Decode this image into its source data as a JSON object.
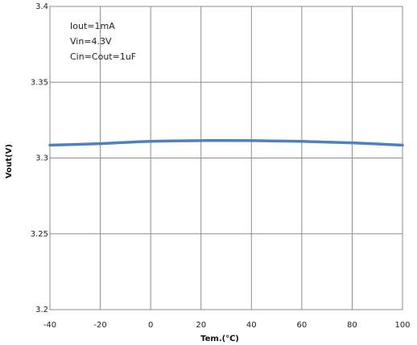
{
  "chart_data": {
    "type": "line",
    "title": "",
    "xlabel": "Tem.(℃)",
    "ylabel": "Vout(V)",
    "xlim": [
      -40,
      100
    ],
    "ylim": [
      3.2,
      3.4
    ],
    "x_ticks": [
      -40,
      -20,
      0,
      20,
      40,
      60,
      80,
      100
    ],
    "x_tick_labels": [
      "-40",
      "-20",
      "0",
      "20",
      "40",
      "60",
      "80",
      "100"
    ],
    "y_ticks": [
      3.2,
      3.25,
      3.3,
      3.35,
      3.4
    ],
    "y_tick_labels": [
      "3.2",
      "3.25",
      "3.3",
      "3.35",
      "3.4"
    ],
    "grid": true,
    "legend": "none",
    "annotations": [
      "Iout=1mA",
      "Vin=4.3V",
      "Cin=Cout=1uF"
    ],
    "series": [
      {
        "color": "#4f81bd",
        "x": [
          -40,
          -20,
          0,
          20,
          40,
          60,
          80,
          100
        ],
        "values": [
          3.3085,
          3.3095,
          3.311,
          3.3115,
          3.3115,
          3.311,
          3.31,
          3.3085
        ]
      }
    ]
  }
}
